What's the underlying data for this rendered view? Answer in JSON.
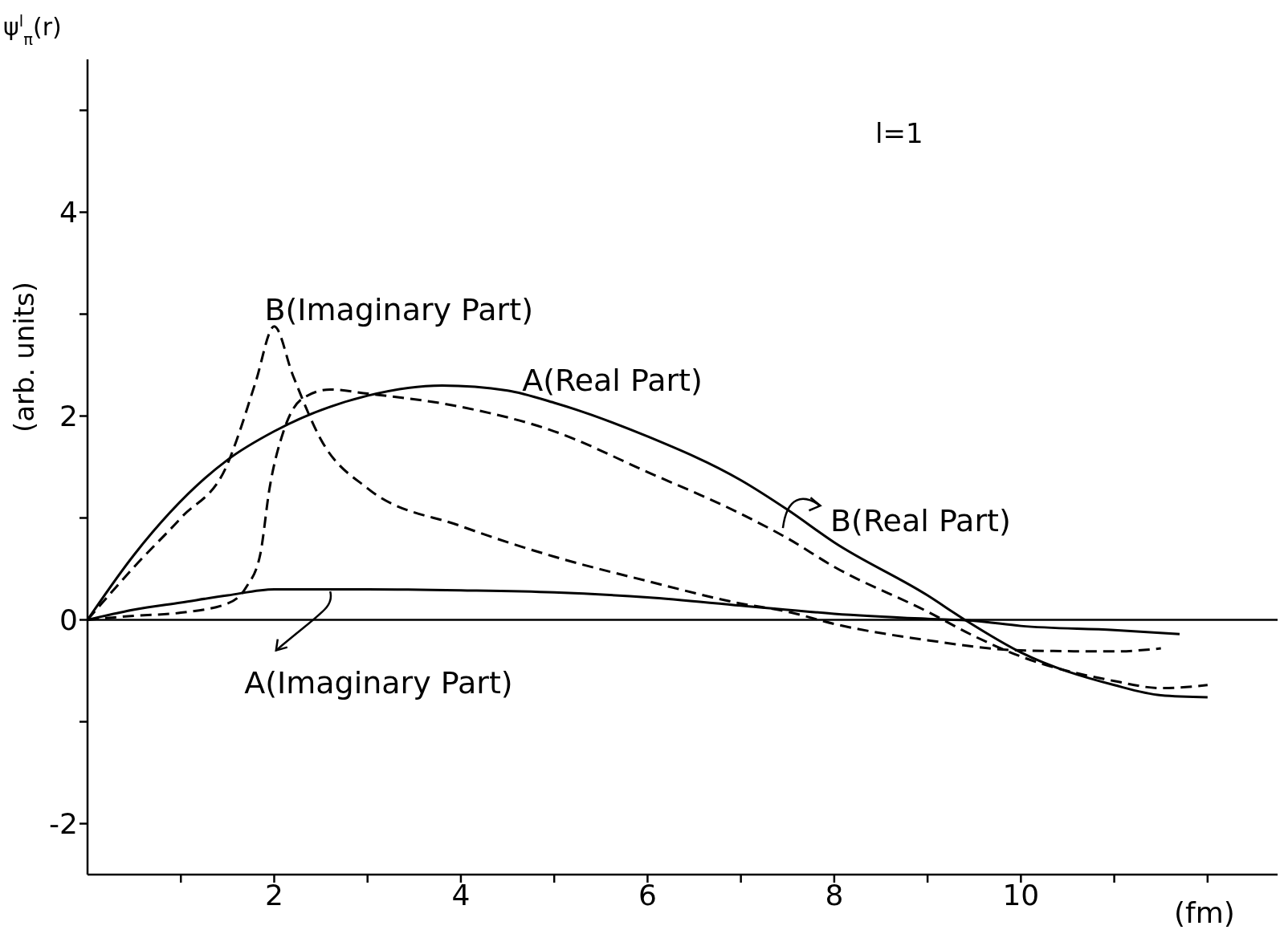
{
  "chart_data": {
    "type": "line",
    "xlabel": "(fm)",
    "ylabel": "(arb. units)",
    "annotations": [
      "ψ$^{l}$$_{π}$(r)",
      "l=1",
      {
        "text": "A(Real Part)",
        "x": 5,
        "y": 2.13
      },
      "B(Real Part)",
      {
        "text": "B(Imaginary Part)",
        "x": 2,
        "y": 2.88
      },
      {
        "text": "A(Imaginary Part)",
        "x": 2.6,
        "y": 0.28
      }
    ],
    "xlim": [
      0,
      12.75
    ],
    "ylim": [
      -2.5,
      5.5
    ],
    "xticks": [
      {
        "value": 1,
        "label": null
      },
      2,
      {
        "value": 3,
        "label": null
      },
      4,
      {
        "value": 5,
        "label": null
      },
      6,
      {
        "value": 7,
        "label": null
      },
      8,
      {
        "value": 9,
        "label": null
      },
      10,
      {
        "value": 11,
        "label": null
      },
      {
        "value": 12,
        "label": null
      }
    ],
    "yticks": [
      -2,
      {
        "value": -1,
        "label": null
      },
      0,
      {
        "value": 1,
        "label": null
      },
      2,
      {
        "value": 3,
        "label": null
      },
      4,
      {
        "value": 5,
        "label": null
      }
    ],
    "grid": false,
    "marker": "none",
    "ref_lines": [
      {
        "axis": "y",
        "value": 0,
        "color": "#000000"
      }
    ],
    "series": [
      {
        "color": "#000000",
        "line_style": "solid",
        "x": [
          0,
          0.5,
          1.5,
          2,
          3,
          3.8,
          4.5,
          5,
          6,
          7,
          7.5,
          8,
          9,
          9.4,
          10,
          11,
          11.5,
          12
        ],
        "values": [
          0,
          0.64,
          1.57,
          1.85,
          2.2,
          2.3,
          2.25,
          2.13,
          1.8,
          1.37,
          1.08,
          0.76,
          0.24,
          0,
          -0.32,
          -0.64,
          -0.74,
          -0.76
        ]
      },
      {
        "color": "#000000",
        "line_style": "dashed",
        "x": [
          0,
          0.5,
          1,
          1.5,
          1.7,
          1.85,
          1.95,
          2.1,
          2.3,
          2.6,
          3,
          4,
          5,
          6,
          7,
          7.5,
          8,
          9,
          9.5,
          10,
          11,
          11.5,
          12
        ],
        "values": [
          0,
          0.04,
          0.07,
          0.16,
          0.32,
          0.64,
          1.29,
          1.85,
          2.17,
          2.26,
          2.22,
          2.09,
          1.85,
          1.45,
          1.04,
          0.8,
          0.52,
          0.08,
          -0.16,
          -0.36,
          -0.6,
          -0.67,
          -0.64
        ]
      },
      {
        "color": "#000000",
        "line_style": "dashed",
        "x": [
          0,
          0.5,
          1,
          1.5,
          1.6,
          1.8,
          2,
          2.2,
          2.5,
          3,
          4,
          5,
          6,
          7,
          7.5,
          8,
          9,
          10,
          11,
          11.5
        ],
        "values": [
          0,
          0.52,
          1,
          1.53,
          1.77,
          2.33,
          2.88,
          2.4,
          1.77,
          1.29,
          0.92,
          0.62,
          0.38,
          0.16,
          0.08,
          -0.04,
          -0.2,
          -0.3,
          -0.31,
          -0.28
        ]
      },
      {
        "color": "#000000",
        "line_style": "solid",
        "x": [
          0,
          0.5,
          1,
          1.5,
          2,
          3,
          4,
          5,
          6,
          7,
          8,
          9,
          9.5,
          10,
          11,
          11.7
        ],
        "values": [
          0,
          0.1,
          0.17,
          0.24,
          0.3,
          0.3,
          0.29,
          0.27,
          0.22,
          0.14,
          0.06,
          0.01,
          -0.01,
          -0.06,
          -0.1,
          -0.14
        ]
      }
    ]
  }
}
